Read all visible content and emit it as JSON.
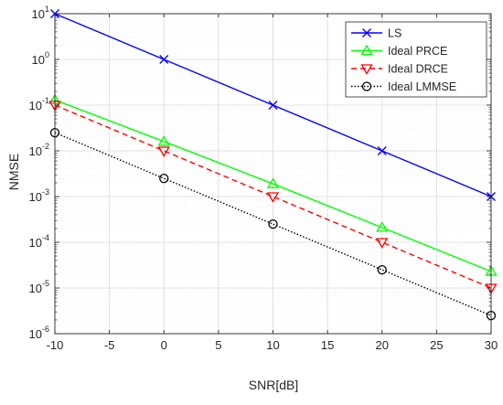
{
  "chart_data": {
    "type": "line",
    "title": "",
    "xlabel": "SNR[dB]",
    "ylabel": "NMSE",
    "x_scale": "linear",
    "y_scale": "log",
    "xlim": [
      -10,
      30
    ],
    "ylim": [
      1e-06,
      10
    ],
    "grid": true,
    "legend_position": "top-right",
    "x_ticks": [
      -10,
      -5,
      0,
      5,
      10,
      15,
      20,
      25,
      30
    ],
    "x_tick_labels": [
      "-10",
      "-5",
      "0",
      "5",
      "10",
      "15",
      "20",
      "25",
      "30"
    ],
    "y_ticks": [
      1e-06,
      1e-05,
      0.0001,
      0.001,
      0.01,
      0.1,
      1,
      10
    ],
    "y_tick_labels": [
      {
        "base": "10",
        "exp": "-6"
      },
      {
        "base": "10",
        "exp": "-5"
      },
      {
        "base": "10",
        "exp": "-4"
      },
      {
        "base": "10",
        "exp": "-3"
      },
      {
        "base": "10",
        "exp": "-2"
      },
      {
        "base": "10",
        "exp": "-1"
      },
      {
        "base": "10",
        "exp": "0"
      },
      {
        "base": "10",
        "exp": "1"
      }
    ],
    "x": [
      -10,
      0,
      10,
      20,
      30
    ],
    "series": [
      {
        "name": "LS",
        "values": [
          10,
          1,
          0.1,
          0.01,
          0.001
        ],
        "color": "#0000ff",
        "line_style": "solid",
        "marker": "x"
      },
      {
        "name": "Ideal PRCE",
        "values": [
          0.13,
          0.016,
          0.0019,
          0.00021,
          2.3e-05
        ],
        "color": "#00ff00",
        "line_style": "solid",
        "marker": "triangle-up"
      },
      {
        "name": "Ideal DRCE",
        "values": [
          0.1,
          0.01,
          0.001,
          0.0001,
          1e-05
        ],
        "color": "#ff0000",
        "line_style": "dashed",
        "marker": "triangle-down"
      },
      {
        "name": "Ideal LMMSE",
        "values": [
          0.025,
          0.0025,
          0.00025,
          2.5e-05,
          2.5e-06
        ],
        "color": "#000000",
        "line_style": "dotted",
        "marker": "circle"
      }
    ]
  }
}
